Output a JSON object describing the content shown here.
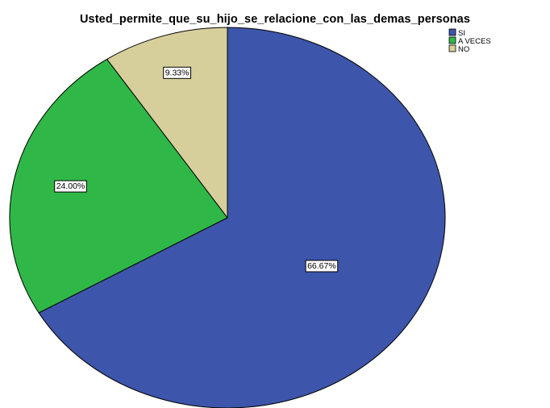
{
  "chart_data": {
    "type": "pie",
    "title": "Usted_permite_que_su_hijo_se_relacione_con_las_demas_personas",
    "categories": [
      "SI",
      "A VECES",
      "NO"
    ],
    "values": [
      66.67,
      24.0,
      9.33
    ],
    "data_labels": [
      "66.67%",
      "24.00%",
      "9.33%"
    ],
    "colors": [
      "#3d55aa",
      "#2fb847",
      "#d6cf9b"
    ],
    "start_angle": "12 o'clock",
    "direction": "clockwise",
    "legend_position": "top-right"
  }
}
